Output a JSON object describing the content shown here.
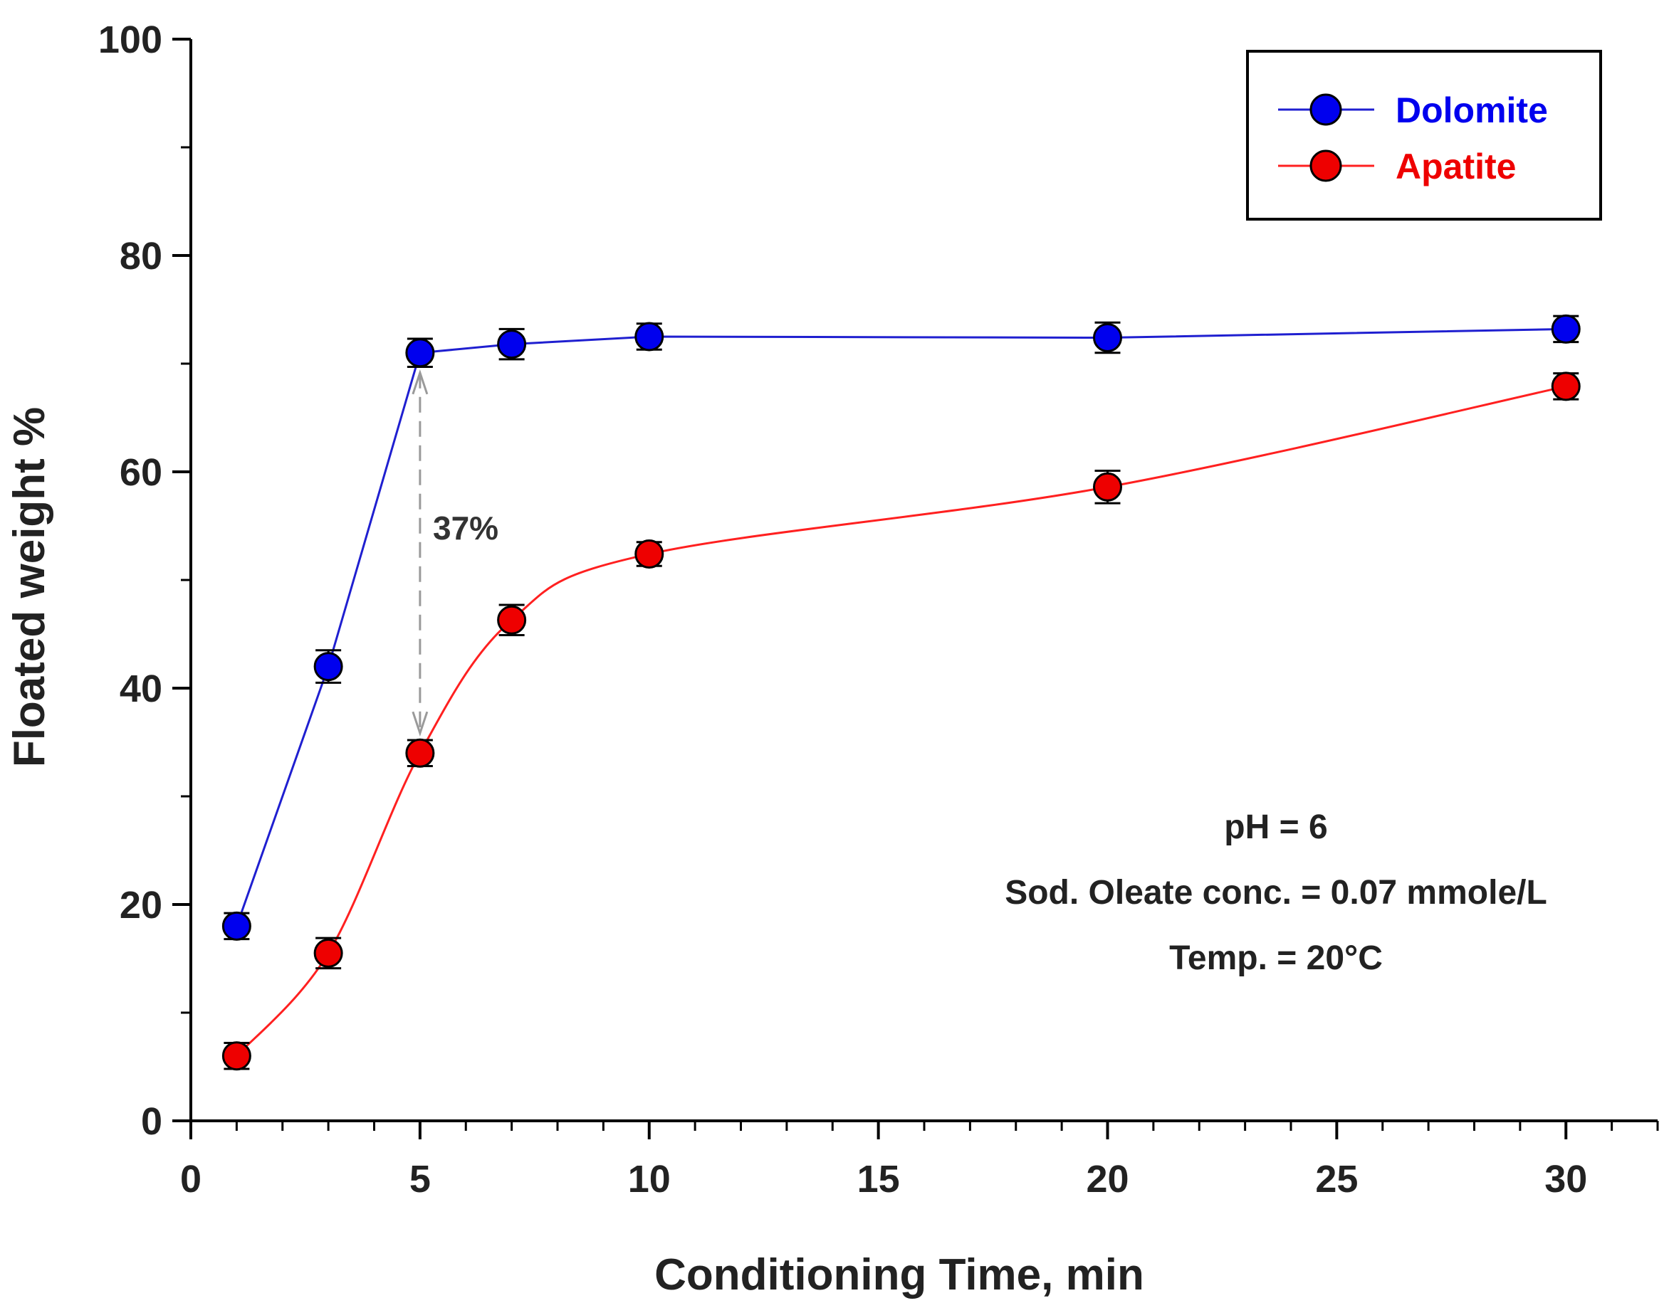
{
  "chart_data": {
    "type": "line",
    "title": "",
    "xlabel": "Conditioning Time, min",
    "ylabel": "Floated weight %",
    "xlim": [
      0,
      32
    ],
    "ylim": [
      0,
      100
    ],
    "x_ticks": [
      0,
      5,
      10,
      15,
      20,
      25,
      30
    ],
    "y_ticks": [
      0,
      20,
      40,
      60,
      80,
      100
    ],
    "grid": false,
    "legend_position": "top-right",
    "series": [
      {
        "name": "Dolomite",
        "color": "#1f1fd0",
        "marker_color": "#0000ee",
        "x": [
          1,
          3,
          5,
          7,
          10,
          20,
          30
        ],
        "y": [
          18,
          42,
          71,
          71.8,
          72.5,
          72.4,
          73.2
        ],
        "error": [
          1.2,
          1.5,
          1.3,
          1.4,
          1.2,
          1.4,
          1.2
        ]
      },
      {
        "name": "Apatite",
        "color": "#ff2020",
        "marker_color": "#ee0000",
        "x": [
          1,
          3,
          5,
          7,
          10,
          20,
          30
        ],
        "y": [
          6,
          15.5,
          34,
          46.3,
          52.4,
          58.6,
          67.9
        ],
        "error": [
          1.2,
          1.4,
          1.2,
          1.4,
          1.1,
          1.5,
          1.2
        ]
      }
    ],
    "annotations": {
      "gap_label": "37%",
      "conditions": [
        "pH = 6",
        "Sod. Oleate conc. = 0.07 mmole/L",
        "Temp. = 20°C"
      ]
    }
  }
}
